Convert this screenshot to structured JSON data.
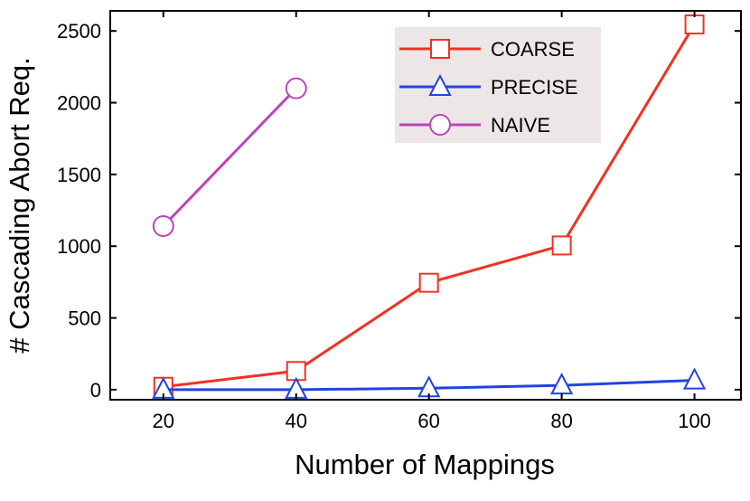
{
  "chart_data": {
    "type": "line",
    "xlabel": "Number of Mappings",
    "ylabel": "# Cascading Abort Req.",
    "x": [
      20,
      40,
      60,
      80,
      100
    ],
    "xlim": [
      12,
      107
    ],
    "ylim": [
      -70,
      2640
    ],
    "xticks": [
      20,
      40,
      60,
      80,
      100
    ],
    "yticks": [
      0,
      500,
      1000,
      1500,
      2000,
      2500
    ],
    "legend_position": "top-right",
    "grid": false,
    "series": [
      {
        "name": "COARSE",
        "color": "#ee3322",
        "marker": "square",
        "x": [
          20,
          40,
          60,
          80,
          100
        ],
        "values": [
          20,
          130,
          745,
          1005,
          2545
        ]
      },
      {
        "name": "PRECISE",
        "color": "#2244dd",
        "marker": "triangle",
        "x": [
          20,
          40,
          60,
          80,
          100
        ],
        "values": [
          0,
          0,
          10,
          30,
          65
        ]
      },
      {
        "name": "NAIVE",
        "color": "#bb44bb",
        "marker": "circle",
        "x": [
          20,
          40
        ],
        "values": [
          1140,
          2100
        ]
      }
    ]
  }
}
